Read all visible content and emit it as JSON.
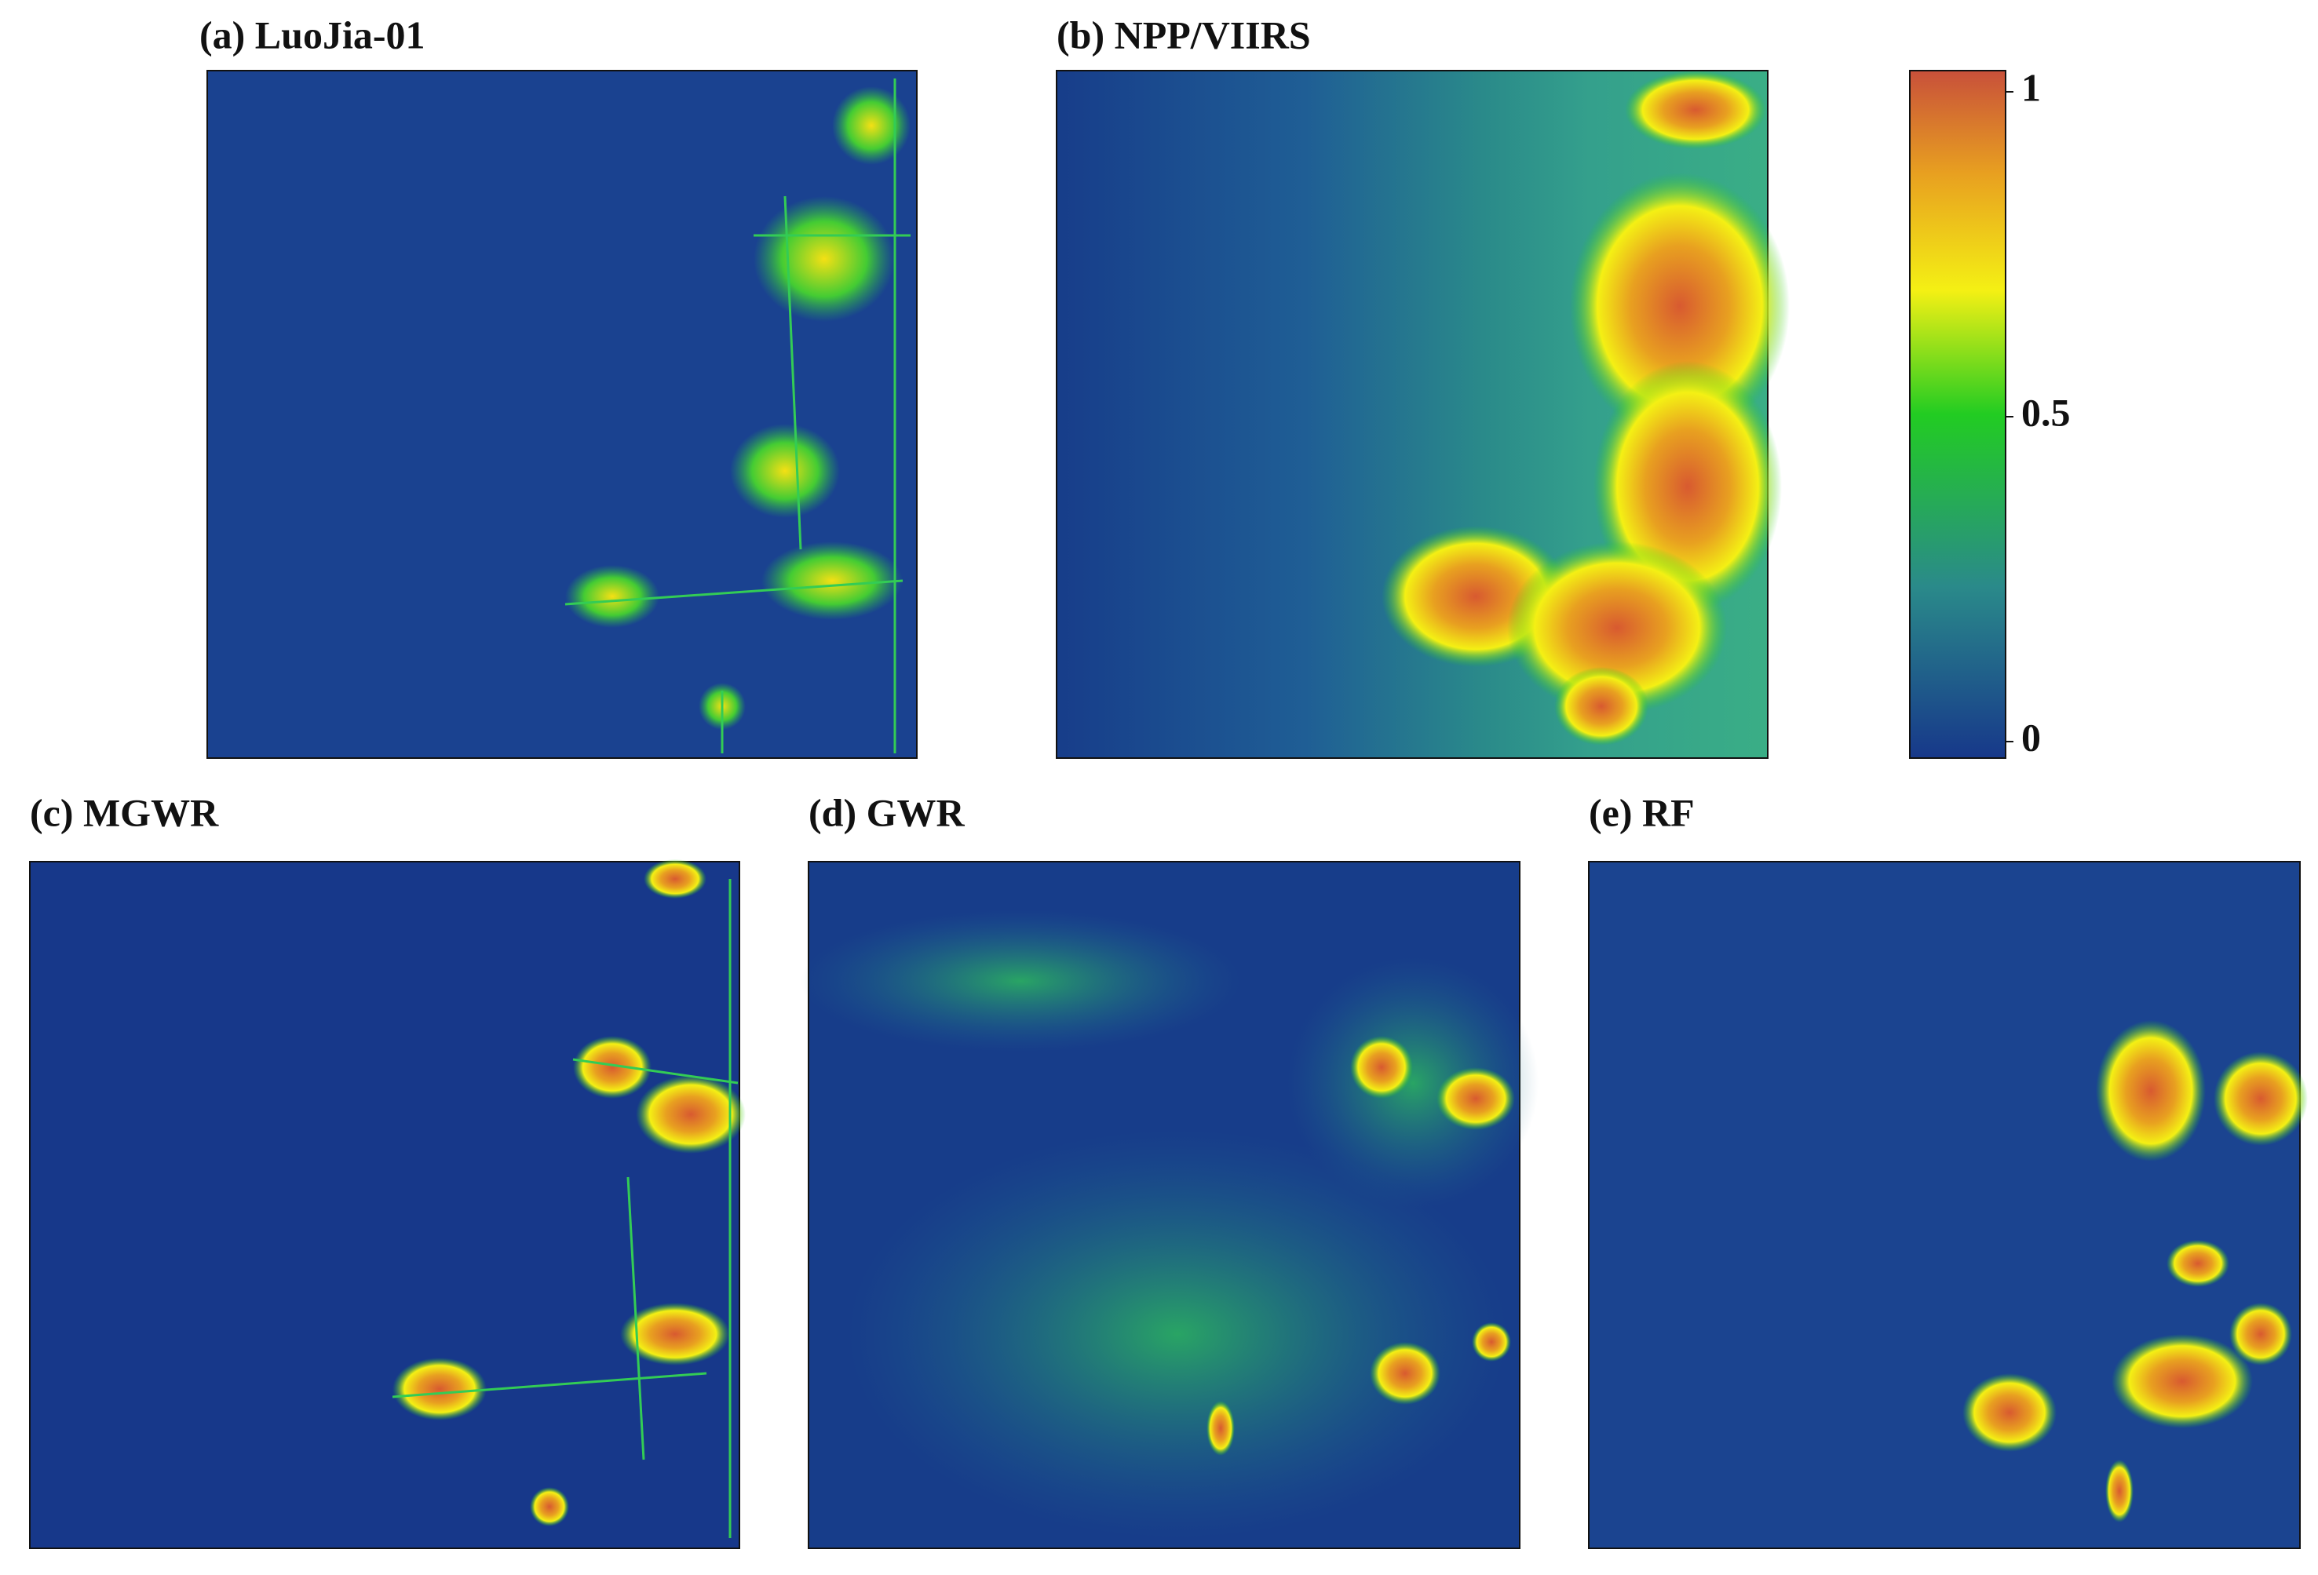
{
  "panels": [
    {
      "label": "(a) LuoJia-01"
    },
    {
      "label": "(b) NPP/VIIRS"
    },
    {
      "label": "(c) MGWR"
    },
    {
      "label": "(d) GWR"
    },
    {
      "label": "(e) RF"
    }
  ],
  "colorbar": {
    "ticks": [
      0,
      0.5,
      1
    ]
  }
}
